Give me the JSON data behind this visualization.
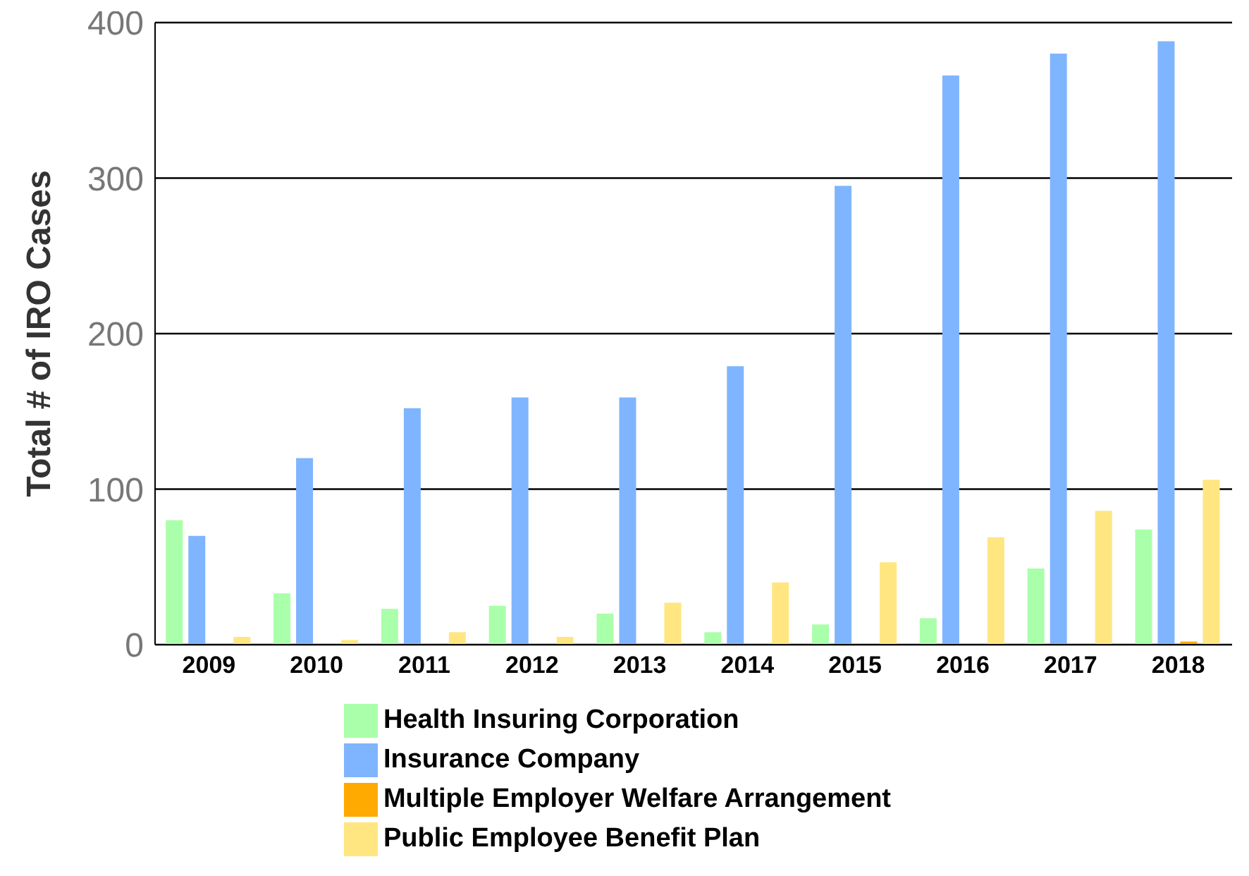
{
  "chart_data": {
    "type": "bar",
    "ylabel": "Total # of IRO Cases",
    "categories": [
      "2009",
      "2010",
      "2011",
      "2012",
      "2013",
      "2014",
      "2015",
      "2016",
      "2017",
      "2018"
    ],
    "series": [
      {
        "name": "Health Insuring Corporation",
        "color": "#aaffaa",
        "values": [
          80,
          33,
          23,
          25,
          20,
          8,
          13,
          17,
          49,
          74
        ]
      },
      {
        "name": "Insurance Company",
        "color": "#7fb5ff",
        "values": [
          70,
          120,
          152,
          159,
          159,
          179,
          295,
          366,
          380,
          388
        ]
      },
      {
        "name": "Multiple Employer Welfare Arrangement",
        "color": "#ffaa00",
        "values": [
          0,
          0,
          0,
          0,
          0,
          0,
          0,
          0,
          0,
          2
        ]
      },
      {
        "name": "Public Employee Benefit Plan",
        "color": "#ffe680",
        "values": [
          5,
          3,
          8,
          5,
          27,
          40,
          53,
          69,
          86,
          106
        ]
      }
    ],
    "ylim": [
      0,
      400
    ],
    "yticks": [
      0,
      100,
      200,
      300,
      400
    ],
    "grid": "y",
    "legend": "bottom"
  }
}
